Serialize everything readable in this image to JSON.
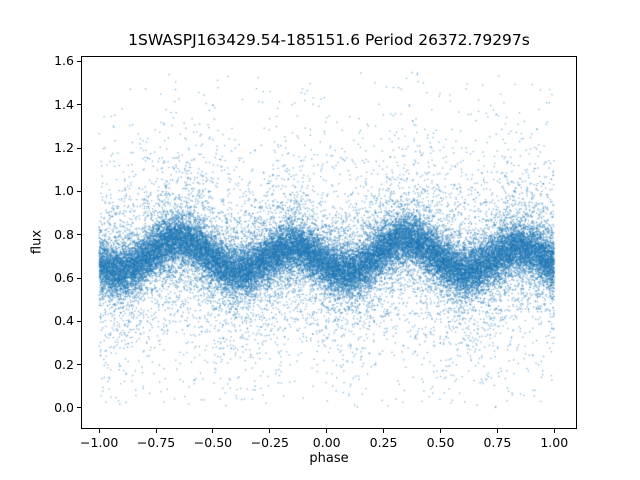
{
  "chart_data": {
    "type": "scatter",
    "title": "1SWASPJ163429.54-185151.6 Period 26372.79297s",
    "xlabel": "phase",
    "ylabel": "flux",
    "xlim": [
      -1.08,
      1.1
    ],
    "ylim": [
      -0.097,
      1.625
    ],
    "x_ticks": [
      -1.0,
      -0.75,
      -0.5,
      -0.25,
      0.0,
      0.25,
      0.5,
      0.75,
      1.0
    ],
    "x_tick_labels": [
      "−1.00",
      "−0.75",
      "−0.50",
      "−0.25",
      "0.00",
      "0.25",
      "0.50",
      "0.75",
      "1.00"
    ],
    "y_ticks": [
      0.0,
      0.2,
      0.4,
      0.6,
      0.8,
      1.0,
      1.2,
      1.4,
      1.6
    ],
    "y_tick_labels": [
      "0.0",
      "0.2",
      "0.4",
      "0.6",
      "0.8",
      "1.0",
      "1.2",
      "1.4",
      "1.6"
    ],
    "grid": false,
    "legend": null,
    "marker_color_rgb": [
      31,
      119,
      180
    ],
    "marker_alpha": 0.55,
    "marker_size_px": 1.3,
    "n_points": 40000,
    "seed": 1634,
    "phase_range": [
      -1.0,
      1.0
    ],
    "mean_curve": {
      "phase": [
        0.0,
        0.05,
        0.1,
        0.15,
        0.2,
        0.25,
        0.3,
        0.35,
        0.4,
        0.45,
        0.5,
        0.55,
        0.6,
        0.65,
        0.7,
        0.75,
        0.8,
        0.85,
        0.9,
        0.95,
        1.0
      ],
      "flux": [
        0.663,
        0.636,
        0.63,
        0.649,
        0.687,
        0.731,
        0.767,
        0.78,
        0.767,
        0.731,
        0.687,
        0.649,
        0.63,
        0.636,
        0.663,
        0.699,
        0.729,
        0.74,
        0.729,
        0.699,
        0.663
      ]
    },
    "noise_components": [
      {
        "frac": 0.7,
        "sigma": 0.055
      },
      {
        "frac": 0.22,
        "sigma": 0.16
      },
      {
        "frac": 0.08,
        "sigma": 0.36
      }
    ],
    "flux_clip": [
      0.002,
      1.555
    ]
  }
}
